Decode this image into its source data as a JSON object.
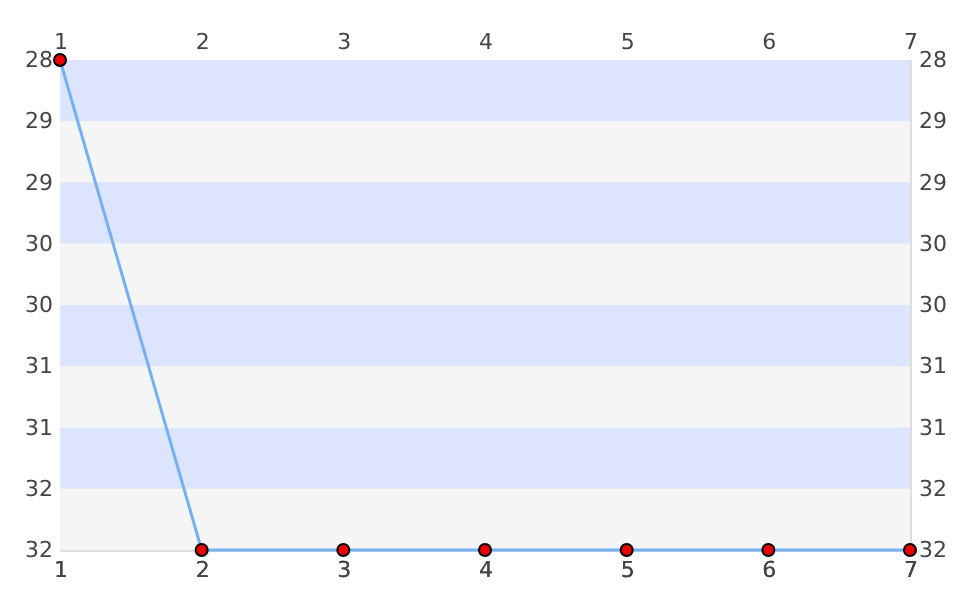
{
  "chart_data": {
    "type": "line",
    "x": [
      1,
      2,
      3,
      4,
      5,
      6,
      7
    ],
    "series": [
      {
        "color": "#74b0f2",
        "colors": [
          "#ee0000",
          "#ee0000",
          "#ee0000",
          "#ee0000",
          "#ee0000",
          "#ee0000",
          "#ee0000"
        ],
        "values": [
          28,
          32,
          32,
          32,
          32,
          32,
          32
        ]
      }
    ],
    "xlim": [
      1,
      7
    ],
    "xticks": [
      1,
      2,
      3,
      4,
      5,
      6,
      7
    ],
    "x2lim": [
      1,
      7
    ],
    "x2ticks": [
      1,
      2,
      3,
      4,
      5,
      6,
      7
    ],
    "ylim": [
      32,
      28
    ],
    "yticks": [
      28,
      {
        "value": 28.5,
        "label": "29"
      },
      29,
      {
        "value": 29.5,
        "label": "30"
      },
      30,
      {
        "value": 30.5,
        "label": "31"
      },
      31,
      {
        "value": 31.5,
        "label": "32"
      },
      32
    ],
    "y2lim": [
      32,
      28
    ],
    "y2ticks": [
      28,
      {
        "value": 28.5,
        "label": "29"
      },
      29,
      {
        "value": 29.5,
        "label": "30"
      },
      30,
      {
        "value": 30.5,
        "label": "31"
      },
      31,
      {
        "value": 31.5,
        "label": "32"
      },
      32
    ],
    "bands": [
      {
        "axis": "y",
        "from": 28,
        "to": 28.5,
        "color": "#dde4fd"
      },
      {
        "axis": "y",
        "from": 28.5,
        "to": 29,
        "color": "#f5f5f5"
      },
      {
        "axis": "y",
        "from": 29,
        "to": 29.5,
        "color": "#dde4fd"
      },
      {
        "axis": "y",
        "from": 29.5,
        "to": 30,
        "color": "#f5f5f5"
      },
      {
        "axis": "y",
        "from": 30,
        "to": 30.5,
        "color": "#dde4fd"
      },
      {
        "axis": "y",
        "from": 30.5,
        "to": 31,
        "color": "#f5f5f5"
      },
      {
        "axis": "y",
        "from": 31,
        "to": 31.5,
        "color": "#dde4fd"
      },
      {
        "axis": "y",
        "from": 31.5,
        "to": 32,
        "color": "#f5f5f5"
      }
    ],
    "grid": "y",
    "marker": "circle",
    "line_style": "solid"
  }
}
